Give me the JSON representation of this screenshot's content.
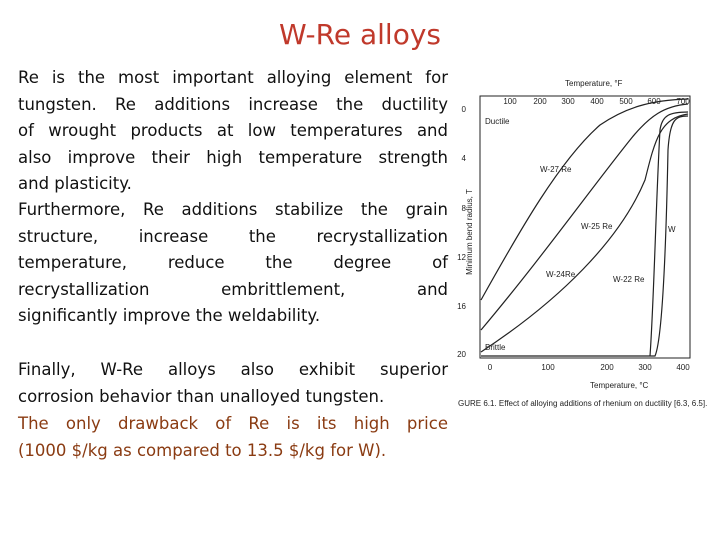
{
  "title": "W-Re alloys",
  "paragraphs": [
    {
      "lines": [
        "Re is the most important alloying element for",
        "tungsten. Re additions increase the ductility",
        "of wrought products at low temperatures and",
        "also improve their high temperature strength",
        "and plasticity."
      ]
    },
    {
      "lines": [
        "Furthermore, Re additions stabilize the grain",
        "structure, increase the recrystallization",
        "temperature, reduce the degree of",
        "recrystallization embrittlement, and",
        "significantly improve the weldability."
      ]
    },
    {
      "lines": [
        "Finally, W-Re alloys also exhibit superior",
        "corrosion behavior than unalloyed tungsten."
      ]
    },
    {
      "lines": [
        "The only drawback of Re is its high price",
        "(1000 $/kg as compared to 13.5 $/kg for W)."
      ]
    }
  ],
  "figure": {
    "top_axis_title": "Temperature, °F",
    "top_ticks": [
      "100",
      "200",
      "300",
      "400",
      "500",
      "600",
      "700"
    ],
    "bottom_axis_title": "Temperature, °C",
    "bottom_ticks": [
      "0",
      "100",
      "200",
      "300",
      "400"
    ],
    "left_axis_title": "Minimum bend radius, T",
    "left_ticks": [
      "0",
      "4",
      "8",
      "12",
      "16",
      "20"
    ],
    "labels": [
      "Ductile",
      "W-27 Re",
      "W-25 Re",
      "W",
      "W-24Re",
      "W-22 Re",
      "Brittle"
    ],
    "caption": "GURE 6.1. Effect of alloying additions of rhenium on ductility [6.3, 6.5]."
  }
}
